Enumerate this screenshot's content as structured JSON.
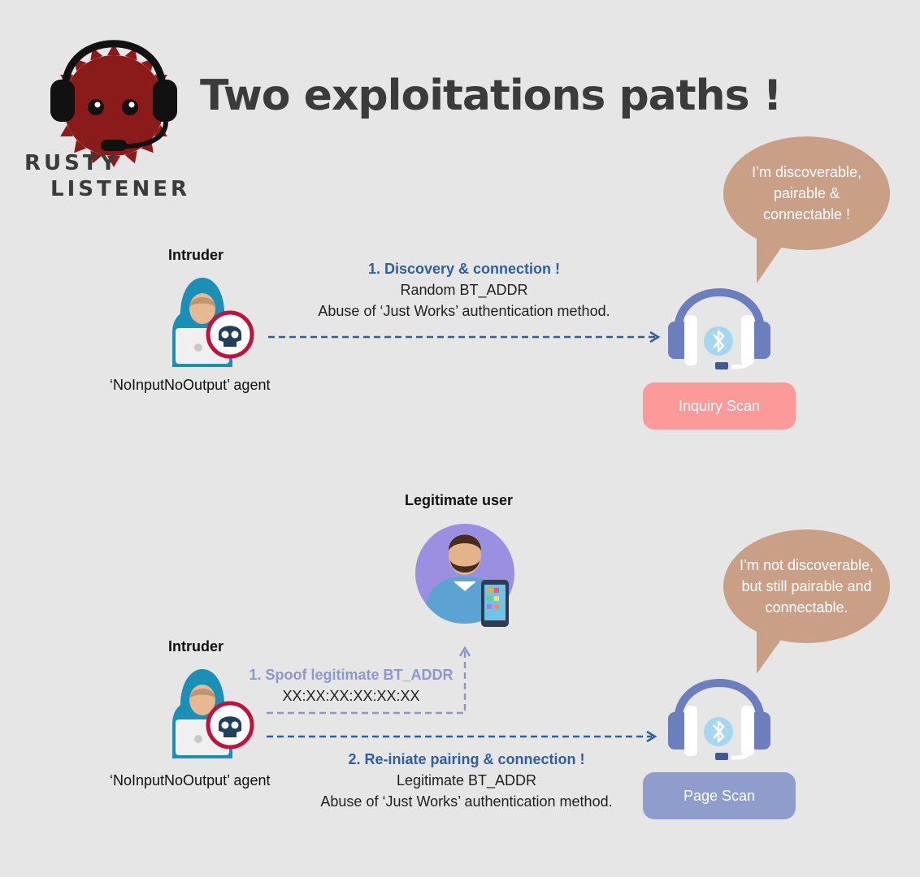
{
  "header": {
    "title": "Two exploitations paths !"
  },
  "logo": {
    "line1": "RUSTY",
    "line2": "LISTENER"
  },
  "path1": {
    "intruder_label": "Intruder",
    "agent_label": "‘NoInputNoOutput’ agent",
    "step_title": "1. Discovery & connection !",
    "step_line1": "Random BT_ADDR",
    "step_line2": "Abuse of ‘Just Works’ authentication method.",
    "bubble_line1": "I’m discoverable,",
    "bubble_line2": "pairable &",
    "bubble_line3": "connectable !",
    "mode": "Inquiry Scan"
  },
  "path2": {
    "user_label": "Legitimate user",
    "intruder_label": "Intruder",
    "agent_label": "‘NoInputNoOutput’ agent",
    "spoof_title": "1. Spoof legitimate BT_ADDR",
    "spoof_addr": "XX:XX:XX:XX:XX:XX",
    "step_title": "2. Re-iniate pairing & connection !",
    "step_line1": "Legitimate BT_ADDR",
    "step_line2": "Abuse of ‘Just Works’ authentication method.",
    "bubble_line1": "I’m not discoverable,",
    "bubble_line2": "but still pairable and",
    "bubble_line3": "connectable.",
    "mode": "Page Scan"
  },
  "colors": {
    "background": "#e6e6e6",
    "accent_blue": "#2e5fa1",
    "spoof_lavender": "#8b98c9",
    "bubble": "#c9a085",
    "inquiry_pill": "#fc9a9a",
    "page_pill": "#8e9dcb",
    "logo_red": "#8b1a1a"
  },
  "icons": [
    "rusty-listener-logo",
    "hacker-icon",
    "skull-icon",
    "headset-icon",
    "bluetooth-icon",
    "user-avatar-icon",
    "smartphone-icon"
  ]
}
